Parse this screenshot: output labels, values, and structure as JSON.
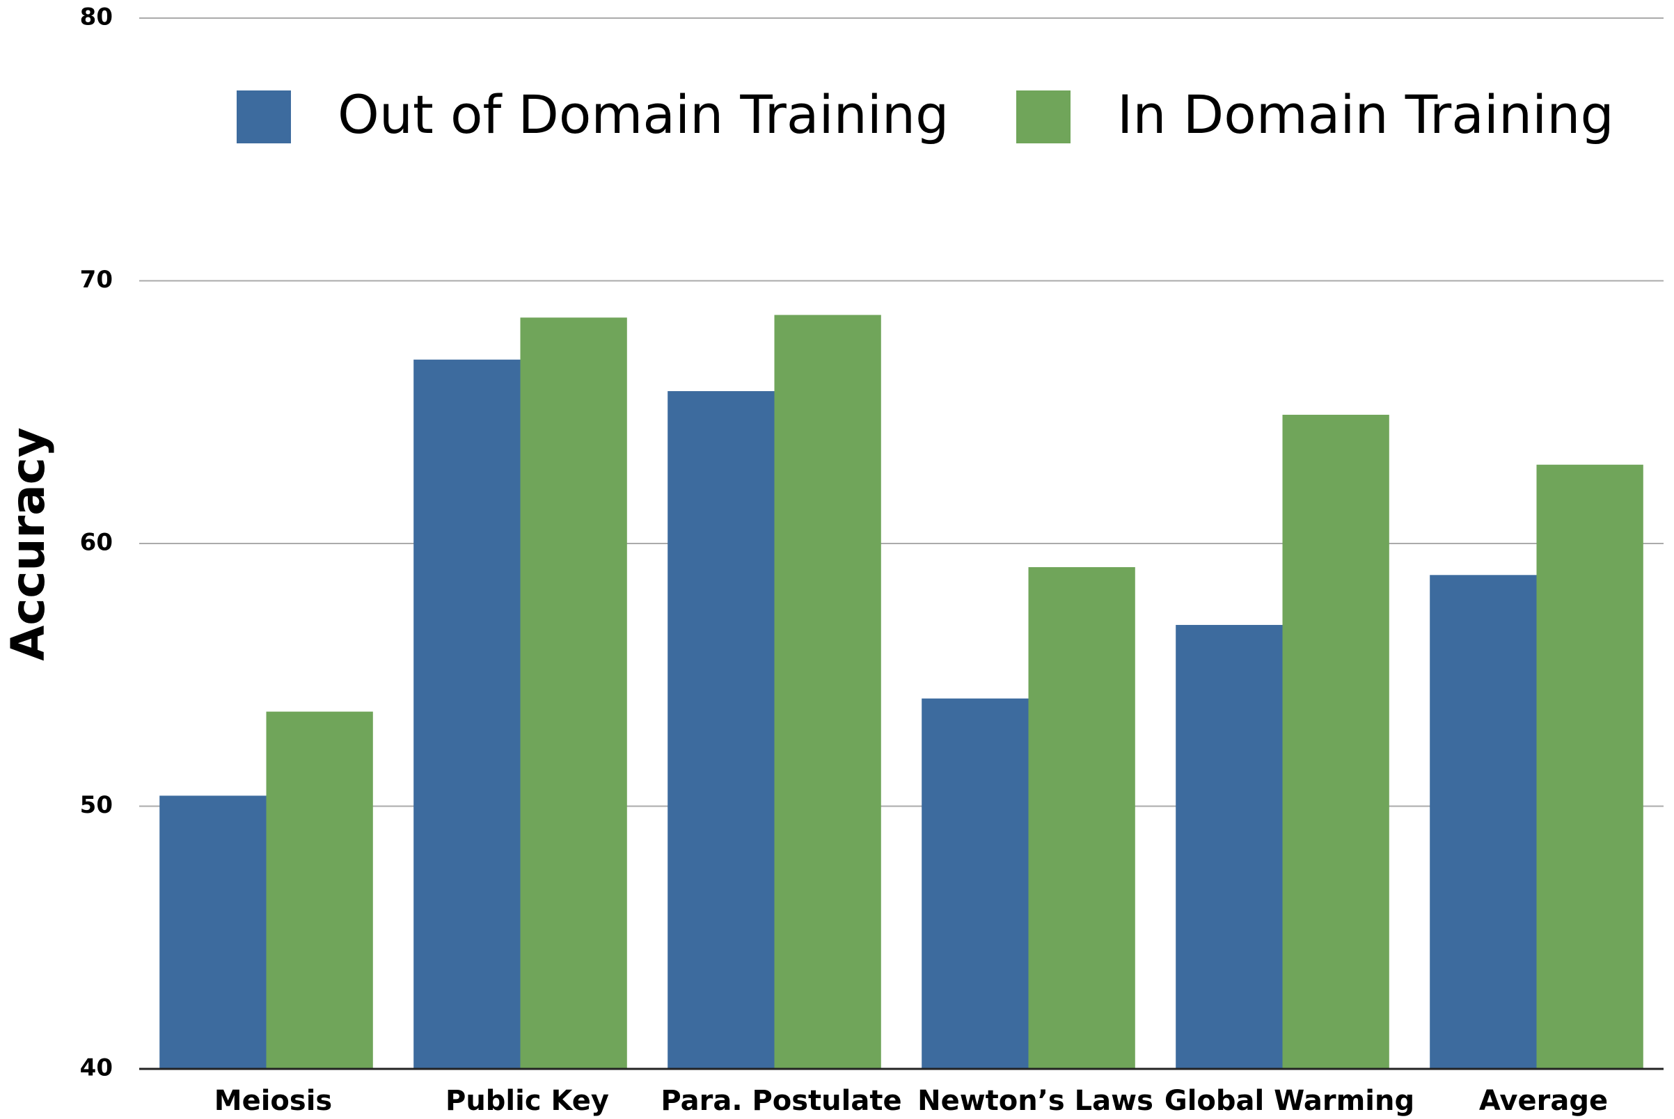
{
  "chart_data": {
    "type": "bar",
    "y_label": "Accuracy",
    "categories": [
      "Meiosis",
      "Public Key",
      "Para. Postulate",
      "Newton’s Laws",
      "Global Warming",
      "Average"
    ],
    "series": [
      {
        "name": "Out of Domain Training",
        "color": "#3d6b9e",
        "values": [
          50.4,
          67.0,
          65.8,
          54.1,
          56.9,
          58.8
        ]
      },
      {
        "name": "In Domain Training",
        "color": "#70a55a",
        "values": [
          53.6,
          68.6,
          68.7,
          59.1,
          64.9,
          63.0
        ]
      }
    ],
    "ylim": [
      40,
      80
    ],
    "yticks": [
      40,
      50,
      60,
      70,
      80
    ],
    "grid": true,
    "legend": "top"
  }
}
